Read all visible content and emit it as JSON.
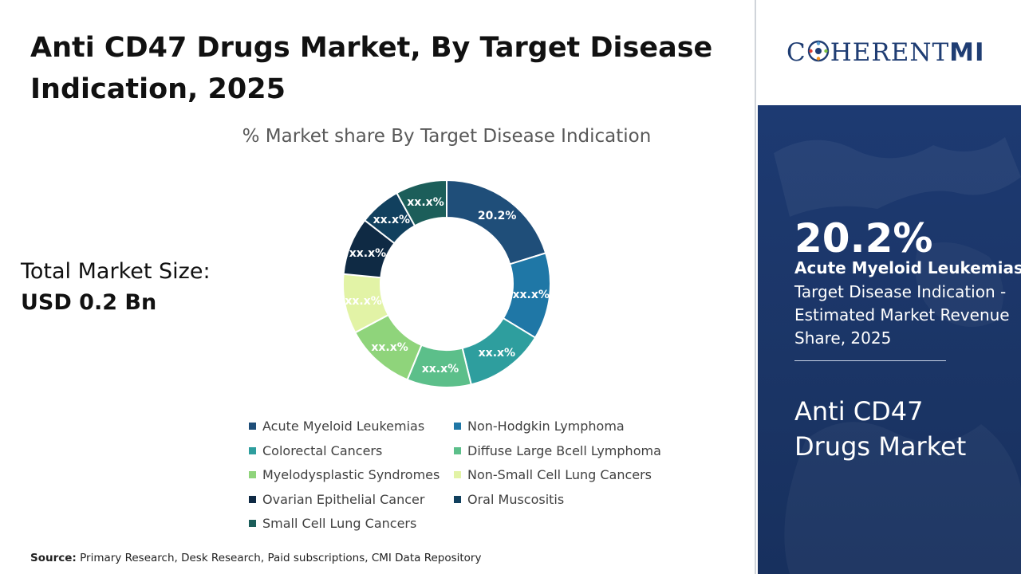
{
  "title": "Anti CD47 Drugs Market, By Target Disease Indication, 2025",
  "total_market": {
    "label": "Total Market Size:",
    "value": "USD 0.2 Bn"
  },
  "source": {
    "label": "Source:",
    "text": "Primary Research, Desk Research, Paid subscriptions, CMI Data Repository"
  },
  "brand": {
    "logo_text_start": "C",
    "logo_text_end": "HERENT",
    "logo_text_mi": "MI",
    "logo_color": "#1f3d73"
  },
  "highlight": {
    "percent": "20.2%",
    "segment": "Acute Myeloid Leukemias",
    "description": "Target Disease Indication - Estimated Market Revenue Share, 2025",
    "market_name": "Anti CD47 Drugs Market"
  },
  "chart_data": {
    "type": "pie",
    "title": "% Market share By Target Disease Indication",
    "legend_placement": "bottom",
    "series": [
      {
        "name": "Acute Myeloid Leukemias",
        "value": 20.2,
        "label": "20.2%",
        "color": "#1f4e79"
      },
      {
        "name": "Non-Hodgkin Lymphoma",
        "value": 13.5,
        "label": "xx.x%",
        "color": "#1f77a6"
      },
      {
        "name": "Colorectal Cancers",
        "value": 12.5,
        "label": "xx.x%",
        "color": "#2e9e9e"
      },
      {
        "name": "Diffuse Large Bcell Lymphoma",
        "value": 10.0,
        "label": "xx.x%",
        "color": "#5cbf8a"
      },
      {
        "name": "Myelodysplastic Syndromes",
        "value": 11.0,
        "label": "xx.x%",
        "color": "#8fd47b"
      },
      {
        "name": "Non-Small Cell Lung Cancers",
        "value": 9.3,
        "label": "xx.x%",
        "color": "#e2f3a6"
      },
      {
        "name": "Ovarian Epithelial Cancer",
        "value": 9.0,
        "label": "xx.x%",
        "color": "#0f2a44"
      },
      {
        "name": "Oral Muscositis",
        "value": 6.5,
        "label": "xx.x%",
        "color": "#11405e"
      },
      {
        "name": "Small Cell Lung Cancers",
        "value": 8.0,
        "label": "xx.x%",
        "color": "#1c5e5a"
      }
    ]
  }
}
